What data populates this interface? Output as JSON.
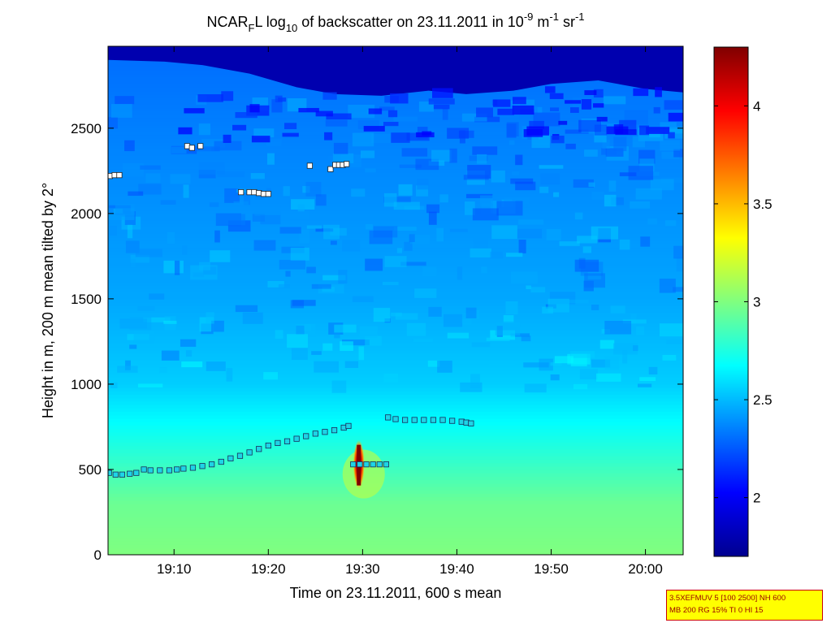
{
  "chart_data": {
    "type": "heatmap",
    "title": {
      "prefix": "NCAR",
      "prefix_sub": "F",
      "mid": "L log",
      "mid_sub": "10",
      "text": " of backscatter on 23.11.2011 in 10",
      "unit_exp1": "-9",
      "unit_mid": " m",
      "unit_exp2": "-1",
      "unit_sr": " sr",
      "unit_exp3": "-1"
    },
    "xlabel": "Time on 23.11.2011, 600 s mean",
    "ylabel": "Height in m, 200 m mean tilted by 2°",
    "x_ticks": [
      "19:10",
      "19:20",
      "19:30",
      "19:40",
      "19:50",
      "20:00"
    ],
    "x_tick_minutes": [
      1150,
      1160,
      1170,
      1180,
      1190,
      1200
    ],
    "xlim_minutes": [
      1143,
      1204
    ],
    "y_ticks": [
      "0",
      "500",
      "1000",
      "1500",
      "2000",
      "2500"
    ],
    "y_tick_values": [
      0,
      500,
      1000,
      1500,
      2000,
      2500
    ],
    "ylim": [
      0,
      2980
    ],
    "colorbar": {
      "range": [
        1.7,
        4.3
      ],
      "ticks": [
        "2",
        "2.5",
        "3",
        "3.5",
        "4"
      ],
      "tick_values": [
        2,
        2.5,
        3,
        3.5,
        4
      ],
      "colormap": "jet"
    },
    "field_levels": [
      {
        "height": 0,
        "value": 3.0
      },
      {
        "height": 300,
        "value": 2.95
      },
      {
        "height": 700,
        "value": 2.72
      },
      {
        "height": 1000,
        "value": 2.55
      },
      {
        "height": 1500,
        "value": 2.45
      },
      {
        "height": 2000,
        "value": 2.4
      },
      {
        "height": 2500,
        "value": 2.35
      },
      {
        "height": 2980,
        "value": 2.3
      }
    ],
    "series": [
      {
        "marker": "cyan-square",
        "x": [
          1143.1,
          1143.8,
          1144.5,
          1145.3,
          1146.0,
          1146.8,
          1147.5,
          1148.5,
          1149.5,
          1150.3,
          1151.0,
          1152.0,
          1153.0,
          1154.0,
          1155.0,
          1156.0,
          1157.0,
          1158.0,
          1159.0,
          1160.0,
          1161.0,
          1162.0,
          1163.0,
          1164.0,
          1165.0,
          1166.0,
          1167.0,
          1168.0,
          1168.5
        ],
        "y": [
          480,
          470,
          470,
          475,
          480,
          500,
          495,
          495,
          495,
          500,
          505,
          510,
          520,
          530,
          545,
          565,
          580,
          600,
          620,
          640,
          655,
          665,
          680,
          695,
          710,
          720,
          730,
          745,
          755
        ]
      },
      {
        "marker": "cyan-square",
        "x": [
          1169.0,
          1169.7,
          1170.4,
          1171.1,
          1171.8,
          1172.5
        ],
        "y": [
          530,
          530,
          530,
          530,
          530,
          530
        ]
      },
      {
        "marker": "cyan-square",
        "x": [
          1172.7,
          1173.5,
          1174.5,
          1175.5,
          1176.5,
          1177.5,
          1178.5,
          1179.5,
          1180.5,
          1181.0,
          1181.5
        ],
        "y": [
          805,
          795,
          790,
          790,
          790,
          790,
          790,
          785,
          780,
          775,
          770
        ]
      },
      {
        "marker": "white-square",
        "x": [
          1143.2,
          1143.7,
          1144.2,
          1151.4,
          1151.9,
          1152.8,
          1157.1,
          1158.0,
          1158.5,
          1159.0,
          1159.5,
          1160.0,
          1164.4,
          1166.6,
          1167.1,
          1167.5,
          1167.9,
          1168.3
        ],
        "y": [
          2220,
          2225,
          2225,
          2395,
          2385,
          2395,
          2125,
          2125,
          2125,
          2120,
          2115,
          2115,
          2280,
          2260,
          2285,
          2285,
          2285,
          2290
        ]
      }
    ],
    "spike": {
      "x": 1169.6,
      "y": 530,
      "value": 4.3
    }
  },
  "settings_box": {
    "line1": "3.5XEFMUV 5 [100 2500] NH 600",
    "line2": "MB 200 RG 15% TI 0 HI 15"
  }
}
